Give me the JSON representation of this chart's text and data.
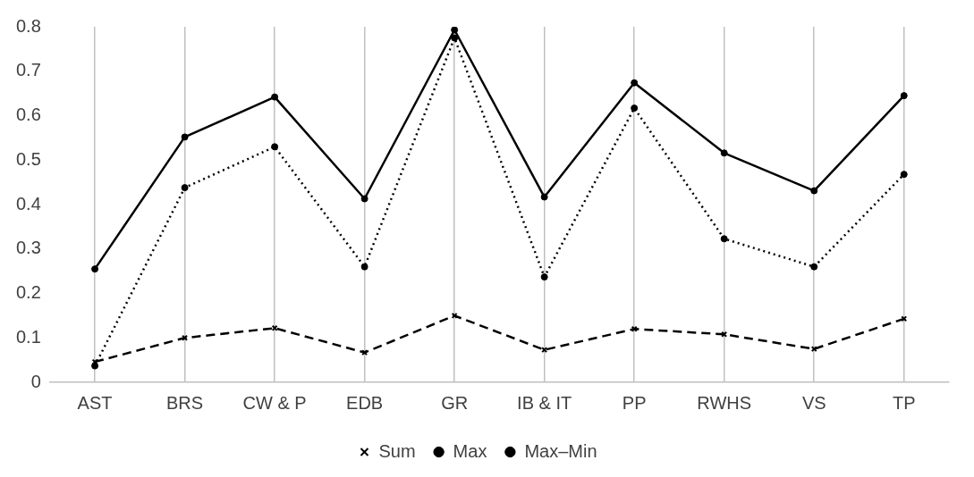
{
  "chart_data": {
    "type": "line",
    "categories": [
      "AST",
      "BRS",
      "CW & P",
      "EDB",
      "GR",
      "IB & IT",
      "PP",
      "RWHS",
      "VS",
      "TP"
    ],
    "series": [
      {
        "name": "Sum",
        "color": "#000000",
        "line_style": "dashed",
        "marker": "cross",
        "values": [
          0.046,
          0.1,
          0.122,
          0.067,
          0.15,
          0.073,
          0.12,
          0.108,
          0.075,
          0.143
        ]
      },
      {
        "name": "Max",
        "color": "#000000",
        "line_style": "solid",
        "marker": "circle",
        "values": [
          0.255,
          0.552,
          0.642,
          0.413,
          0.793,
          0.417,
          0.674,
          0.516,
          0.431,
          0.645
        ]
      },
      {
        "name": "Max–Min",
        "color": "#000000",
        "line_style": "dotted",
        "marker": "circle",
        "values": [
          0.037,
          0.438,
          0.53,
          0.26,
          0.775,
          0.237,
          0.617,
          0.323,
          0.26,
          0.468
        ]
      }
    ],
    "ylim": [
      0,
      0.8
    ],
    "yticks": [
      0,
      0.1,
      0.2,
      0.3,
      0.4,
      0.5,
      0.6,
      0.7,
      0.8
    ],
    "grid": "x",
    "legend": "bottom"
  }
}
